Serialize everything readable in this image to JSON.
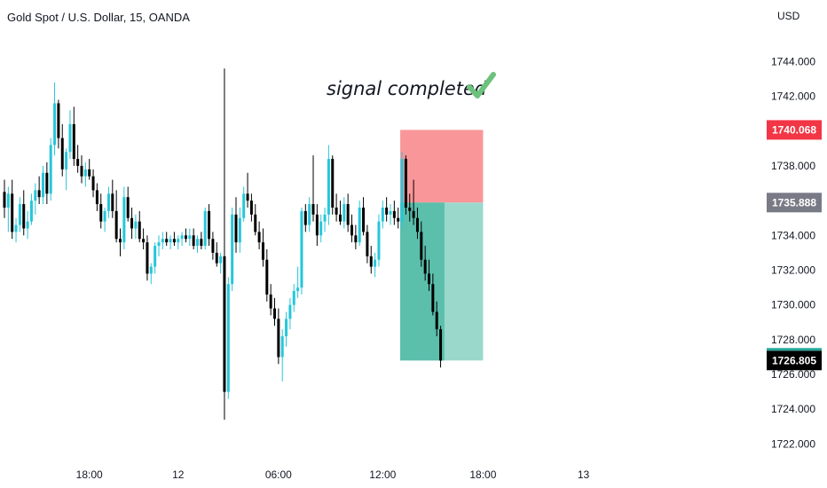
{
  "chart_data": {
    "type": "candlestick",
    "title": "Gold Spot / U.S. Dollar, 15, OANDA",
    "currency": "USD",
    "ylim": [
      1721,
      1745.5
    ],
    "y_ticks": [
      "1722.000",
      "1724.000",
      "1726.000",
      "1728.000",
      "1730.000",
      "1732.000",
      "1734.000",
      "1736.000",
      "1738.000",
      "1740.000",
      "1742.000",
      "1744.000"
    ],
    "x_ticks": [
      {
        "label": "18:00",
        "bar": 22
      },
      {
        "label": "12",
        "bar": 45
      },
      {
        "label": "06:00",
        "bar": 71
      },
      {
        "label": "12:00",
        "bar": 98
      },
      {
        "label": "18:00",
        "bar": 124
      },
      {
        "label": "13",
        "bar": 150
      }
    ],
    "annotation": "signal completed",
    "annotation_icon": "check-mark-icon",
    "price_tags": [
      {
        "label": "1740.068",
        "value": 1740.068,
        "color": "#f23645"
      },
      {
        "label": "1735.888",
        "value": 1735.888,
        "color": "#787b86"
      },
      {
        "label": "1726.805",
        "value": 1726.805,
        "color": "#000000"
      }
    ],
    "position": {
      "type": "short",
      "entry": 1735.888,
      "stop": 1740.068,
      "target": 1726.805,
      "start_bar": 103,
      "end_bar": 124,
      "filled_end_bar": 114,
      "stop_color": "#f77c80",
      "target_color": "#5bbfac",
      "target_color_light": "#9ad8cc"
    },
    "up_color": "#26c6da",
    "down_color": "#000000",
    "candles": [
      [
        1736.5,
        1737.2,
        1735.0,
        1735.6
      ],
      [
        1735.6,
        1736.8,
        1734.2,
        1736.4
      ],
      [
        1736.4,
        1737.2,
        1733.8,
        1734.2
      ],
      [
        1734.2,
        1735.0,
        1733.6,
        1734.6
      ],
      [
        1734.6,
        1736.2,
        1734.2,
        1735.8
      ],
      [
        1735.8,
        1736.6,
        1734.0,
        1734.4
      ],
      [
        1734.4,
        1735.4,
        1733.8,
        1734.8
      ],
      [
        1734.8,
        1736.4,
        1734.6,
        1736.0
      ],
      [
        1736.0,
        1737.0,
        1735.2,
        1736.6
      ],
      [
        1736.6,
        1737.4,
        1735.8,
        1736.2
      ],
      [
        1736.2,
        1738.0,
        1735.8,
        1737.6
      ],
      [
        1737.6,
        1738.2,
        1735.8,
        1736.4
      ],
      [
        1736.4,
        1739.6,
        1736.0,
        1739.2
      ],
      [
        1739.2,
        1742.8,
        1738.6,
        1741.6
      ],
      [
        1741.6,
        1741.8,
        1739.0,
        1739.6
      ],
      [
        1739.6,
        1740.4,
        1737.4,
        1737.8
      ],
      [
        1737.8,
        1739.0,
        1736.6,
        1738.8
      ],
      [
        1738.8,
        1741.2,
        1738.4,
        1740.4
      ],
      [
        1740.4,
        1741.4,
        1738.0,
        1738.4
      ],
      [
        1738.4,
        1739.2,
        1737.6,
        1738.0
      ],
      [
        1738.0,
        1738.6,
        1737.0,
        1737.4
      ],
      [
        1737.4,
        1738.2,
        1736.8,
        1737.8
      ],
      [
        1737.8,
        1738.4,
        1737.2,
        1737.4
      ],
      [
        1737.4,
        1737.8,
        1736.2,
        1736.6
      ],
      [
        1736.6,
        1737.0,
        1735.4,
        1735.8
      ],
      [
        1735.8,
        1736.4,
        1734.4,
        1734.8
      ],
      [
        1734.8,
        1735.6,
        1734.2,
        1735.4
      ],
      [
        1735.4,
        1736.8,
        1735.0,
        1736.4
      ],
      [
        1736.4,
        1737.2,
        1735.0,
        1735.4
      ],
      [
        1735.4,
        1736.6,
        1733.6,
        1733.8
      ],
      [
        1733.8,
        1734.4,
        1732.8,
        1733.6
      ],
      [
        1733.6,
        1736.8,
        1733.2,
        1736.2
      ],
      [
        1736.2,
        1736.8,
        1734.8,
        1735.0
      ],
      [
        1735.0,
        1735.6,
        1733.8,
        1734.4
      ],
      [
        1734.4,
        1735.2,
        1733.8,
        1734.8
      ],
      [
        1734.8,
        1735.4,
        1733.6,
        1733.8
      ],
      [
        1733.8,
        1734.4,
        1733.2,
        1733.6
      ],
      [
        1733.6,
        1734.0,
        1731.4,
        1731.8
      ],
      [
        1731.8,
        1732.4,
        1731.2,
        1732.2
      ],
      [
        1732.2,
        1733.6,
        1731.8,
        1733.4
      ],
      [
        1733.4,
        1734.0,
        1732.8,
        1733.6
      ],
      [
        1733.6,
        1734.2,
        1733.2,
        1733.8
      ],
      [
        1733.8,
        1734.2,
        1733.4,
        1733.6
      ],
      [
        1733.6,
        1734.0,
        1733.2,
        1733.8
      ],
      [
        1733.8,
        1734.2,
        1733.4,
        1733.6
      ],
      [
        1733.6,
        1734.0,
        1733.2,
        1733.8
      ],
      [
        1733.8,
        1734.2,
        1733.4,
        1734.0
      ],
      [
        1734.0,
        1734.4,
        1733.6,
        1733.8
      ],
      [
        1733.8,
        1734.4,
        1733.4,
        1734.0
      ],
      [
        1734.0,
        1734.4,
        1733.2,
        1733.4
      ],
      [
        1733.4,
        1734.0,
        1733.0,
        1733.8
      ],
      [
        1733.8,
        1734.2,
        1733.2,
        1733.4
      ],
      [
        1733.4,
        1735.6,
        1733.2,
        1735.4
      ],
      [
        1735.4,
        1735.8,
        1733.4,
        1733.8
      ],
      [
        1733.8,
        1734.2,
        1732.6,
        1733.0
      ],
      [
        1733.0,
        1733.6,
        1732.2,
        1732.4
      ],
      [
        1732.4,
        1733.0,
        1731.8,
        1732.8
      ],
      [
        1732.8,
        1743.6,
        1723.4,
        1725.0
      ],
      [
        1725.0,
        1731.6,
        1724.6,
        1731.2
      ],
      [
        1731.2,
        1735.6,
        1730.8,
        1735.2
      ],
      [
        1735.2,
        1736.2,
        1733.0,
        1733.6
      ],
      [
        1733.6,
        1735.6,
        1733.0,
        1735.0
      ],
      [
        1735.0,
        1736.8,
        1734.8,
        1736.4
      ],
      [
        1736.4,
        1737.6,
        1735.6,
        1736.0
      ],
      [
        1736.0,
        1736.4,
        1734.8,
        1735.2
      ],
      [
        1735.2,
        1735.8,
        1734.0,
        1734.2
      ],
      [
        1734.2,
        1734.8,
        1733.2,
        1733.6
      ],
      [
        1733.6,
        1734.4,
        1732.2,
        1732.6
      ],
      [
        1732.6,
        1733.2,
        1730.2,
        1730.6
      ],
      [
        1730.6,
        1731.2,
        1729.4,
        1729.8
      ],
      [
        1729.8,
        1730.4,
        1728.8,
        1729.2
      ],
      [
        1729.2,
        1729.8,
        1726.6,
        1727.0
      ],
      [
        1727.0,
        1728.6,
        1725.6,
        1728.2
      ],
      [
        1728.2,
        1729.6,
        1727.6,
        1729.2
      ],
      [
        1729.2,
        1730.4,
        1728.6,
        1730.0
      ],
      [
        1730.0,
        1731.2,
        1729.6,
        1730.8
      ],
      [
        1730.8,
        1732.2,
        1730.4,
        1731.0
      ],
      [
        1731.0,
        1735.6,
        1730.6,
        1735.4
      ],
      [
        1735.4,
        1735.8,
        1734.2,
        1734.6
      ],
      [
        1734.6,
        1736.2,
        1734.2,
        1735.8
      ],
      [
        1735.8,
        1738.6,
        1734.8,
        1735.2
      ],
      [
        1735.2,
        1735.8,
        1733.4,
        1734.0
      ],
      [
        1734.0,
        1735.2,
        1733.6,
        1734.8
      ],
      [
        1734.8,
        1735.6,
        1734.2,
        1735.2
      ],
      [
        1735.2,
        1739.2,
        1734.6,
        1738.4
      ],
      [
        1738.4,
        1738.6,
        1735.2,
        1735.6
      ],
      [
        1735.6,
        1736.4,
        1734.8,
        1735.2
      ],
      [
        1735.2,
        1736.0,
        1734.6,
        1734.8
      ],
      [
        1734.8,
        1736.2,
        1734.4,
        1735.8
      ],
      [
        1735.8,
        1736.4,
        1734.2,
        1734.6
      ],
      [
        1734.6,
        1735.2,
        1733.6,
        1734.0
      ],
      [
        1734.0,
        1734.6,
        1733.2,
        1733.6
      ],
      [
        1733.6,
        1736.0,
        1733.4,
        1735.6
      ],
      [
        1735.6,
        1736.2,
        1734.0,
        1734.2
      ],
      [
        1734.2,
        1734.6,
        1732.4,
        1732.8
      ],
      [
        1732.8,
        1733.4,
        1731.8,
        1732.2
      ],
      [
        1732.2,
        1733.0,
        1731.6,
        1732.6
      ],
      [
        1732.6,
        1735.2,
        1732.2,
        1734.8
      ],
      [
        1734.8,
        1736.0,
        1734.4,
        1735.6
      ],
      [
        1735.6,
        1736.2,
        1734.8,
        1735.2
      ],
      [
        1735.2,
        1735.8,
        1734.6,
        1735.4
      ],
      [
        1735.4,
        1736.0,
        1734.6,
        1735.0
      ],
      [
        1735.0,
        1735.6,
        1734.4,
        1734.8
      ],
      [
        1734.8,
        1738.8,
        1734.4,
        1738.4
      ],
      [
        1738.4,
        1738.6,
        1735.2,
        1735.6
      ],
      [
        1735.6,
        1736.4,
        1734.8,
        1735.4
      ],
      [
        1735.4,
        1737.2,
        1734.6,
        1735.0
      ],
      [
        1735.0,
        1735.6,
        1733.8,
        1734.2
      ],
      [
        1734.2,
        1734.8,
        1732.2,
        1732.6
      ],
      [
        1732.6,
        1733.4,
        1731.4,
        1731.8
      ],
      [
        1731.8,
        1732.6,
        1730.8,
        1731.2
      ],
      [
        1731.2,
        1731.8,
        1729.4,
        1729.6
      ],
      [
        1729.6,
        1730.2,
        1728.2,
        1728.6
      ],
      [
        1728.6,
        1728.8,
        1726.4,
        1726.8
      ]
    ]
  }
}
